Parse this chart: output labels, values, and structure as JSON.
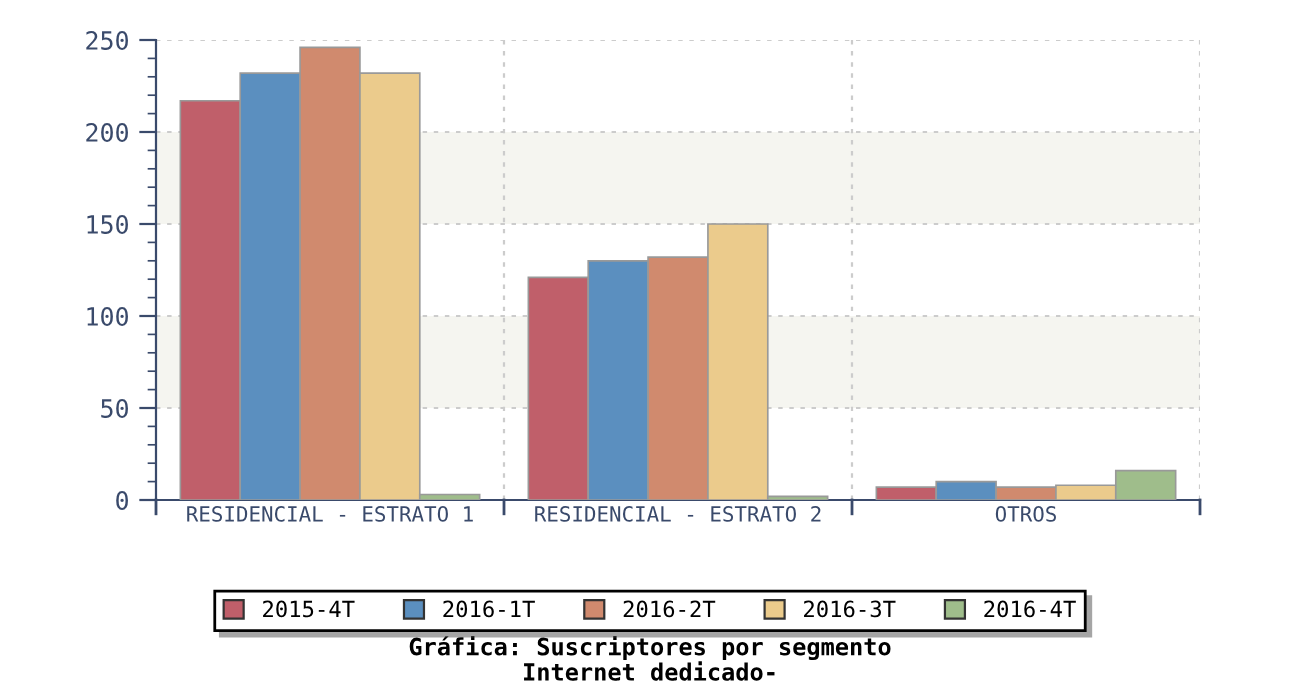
{
  "chart_data": {
    "type": "bar",
    "title": "Gráfica: Suscriptores por segmento",
    "subtitle": "Internet dedicado-",
    "categories": [
      "RESIDENCIAL - ESTRATO 1",
      "RESIDENCIAL - ESTRATO 2",
      "OTROS"
    ],
    "series": [
      {
        "name": "2015-4T",
        "color": "#c05f6a",
        "values": [
          217,
          121,
          7
        ]
      },
      {
        "name": "2016-1T",
        "color": "#5b8fbf",
        "values": [
          232,
          130,
          10
        ]
      },
      {
        "name": "2016-2T",
        "color": "#d08a6e",
        "values": [
          246,
          132,
          7
        ]
      },
      {
        "name": "2016-3T",
        "color": "#ebcb8c",
        "values": [
          232,
          150,
          8
        ]
      },
      {
        "name": "2016-4T",
        "color": "#9fbd8b",
        "values": [
          3,
          2,
          16
        ]
      }
    ],
    "ylim": [
      0,
      250
    ],
    "yticks": [
      0,
      50,
      100,
      150,
      200,
      250
    ],
    "bands": [
      {
        "axis": "y",
        "from": 50,
        "to": 100,
        "color": "#f5f5f0"
      },
      {
        "axis": "y",
        "from": 150,
        "to": 200,
        "color": "#f5f5f0"
      }
    ],
    "grid": true,
    "legend": "bottom"
  }
}
